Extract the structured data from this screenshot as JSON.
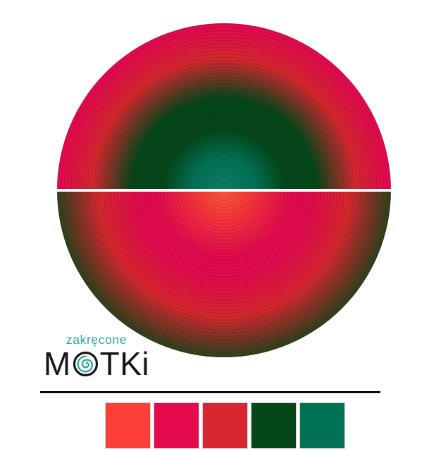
{
  "logo": {
    "subtitle": "zakręcone",
    "title_m": "M",
    "title_rest": "TKi",
    "subtitle_color": "#2aa79a",
    "title_color": "#161616",
    "spiral_color": "#2aa79a"
  },
  "artwork": {
    "divider_color": "#ffffff",
    "top_center_color": "#108069",
    "bottom_center_color": "#fd5743"
  },
  "footer": {
    "rule_color": "#0b0b0b"
  },
  "palette": {
    "border_color": "#d9d9d9",
    "swatches": [
      {
        "name": "vermillion",
        "hex": "#fc3d38"
      },
      {
        "name": "crimson",
        "hex": "#e30b4d"
      },
      {
        "name": "red",
        "hex": "#d8272e"
      },
      {
        "name": "dark-green",
        "hex": "#054719"
      },
      {
        "name": "teal-green",
        "hex": "#017254"
      }
    ]
  }
}
